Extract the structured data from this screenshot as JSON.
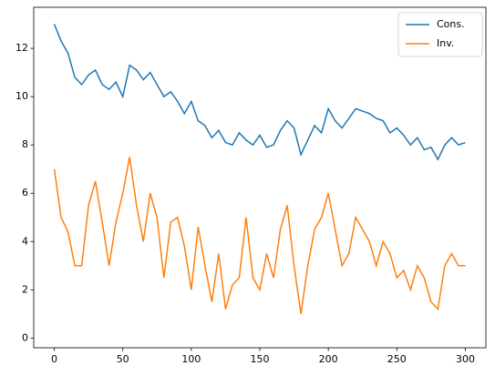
{
  "chart_data": {
    "type": "line",
    "x": [
      0,
      5,
      10,
      15,
      20,
      25,
      30,
      35,
      40,
      45,
      50,
      55,
      60,
      65,
      70,
      75,
      80,
      85,
      90,
      95,
      100,
      105,
      110,
      115,
      120,
      125,
      130,
      135,
      140,
      145,
      150,
      155,
      160,
      165,
      170,
      175,
      180,
      185,
      190,
      195,
      200,
      205,
      210,
      215,
      220,
      225,
      230,
      235,
      240,
      245,
      250,
      255,
      260,
      265,
      270,
      275,
      280,
      285,
      290,
      295,
      300
    ],
    "series": [
      {
        "name": "Cons.",
        "color": "#1f77b4",
        "values": [
          13.0,
          12.3,
          11.8,
          10.8,
          10.5,
          10.9,
          11.1,
          10.5,
          10.3,
          10.6,
          10.0,
          11.3,
          11.1,
          10.7,
          11.0,
          10.5,
          10.0,
          10.2,
          9.8,
          9.3,
          9.8,
          9.0,
          8.8,
          8.3,
          8.6,
          8.1,
          8.0,
          8.5,
          8.2,
          8.0,
          8.4,
          7.9,
          8.0,
          8.6,
          9.0,
          8.7,
          7.6,
          8.2,
          8.8,
          8.5,
          9.5,
          9.0,
          8.7,
          9.1,
          9.5,
          9.4,
          9.3,
          9.1,
          9.0,
          8.5,
          8.7,
          8.4,
          8.0,
          8.3,
          7.8,
          7.9,
          7.4,
          8.0,
          8.3,
          8.0,
          8.1
        ]
      },
      {
        "name": "Inv.",
        "color": "#ff7f0e",
        "values": [
          7.0,
          5.0,
          4.4,
          3.0,
          3.0,
          5.5,
          6.5,
          4.8,
          3.0,
          4.8,
          6.0,
          7.5,
          5.5,
          4.0,
          6.0,
          5.0,
          2.5,
          4.8,
          5.0,
          3.8,
          2.0,
          4.6,
          3.0,
          1.5,
          3.5,
          1.2,
          2.2,
          2.5,
          5.0,
          2.5,
          2.0,
          3.5,
          2.5,
          4.5,
          5.5,
          3.0,
          1.0,
          3.0,
          4.5,
          5.0,
          6.0,
          4.5,
          3.0,
          3.5,
          5.0,
          4.5,
          4.0,
          3.0,
          4.0,
          3.5,
          2.5,
          2.8,
          2.0,
          3.0,
          2.5,
          1.5,
          1.2,
          3.0,
          3.5,
          3.0,
          3.0
        ]
      }
    ],
    "xlim": [
      -15,
      315
    ],
    "ylim": [
      -0.4,
      13.7
    ],
    "xticks": [
      0,
      50,
      100,
      150,
      200,
      250,
      300
    ],
    "yticks": [
      0,
      2,
      4,
      6,
      8,
      10,
      12
    ],
    "legend": "upper right"
  }
}
